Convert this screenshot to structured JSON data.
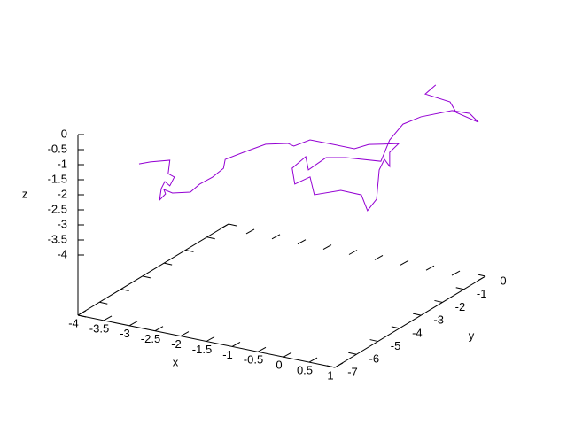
{
  "chart_data": {
    "type": "line3d",
    "xlabel": "x",
    "ylabel": "y",
    "zlabel": "z",
    "xlim": [
      -4,
      1
    ],
    "ylim": [
      -7,
      0
    ],
    "zlim": [
      -4,
      0
    ],
    "xticks": [
      -4,
      -3.5,
      -3,
      -2.5,
      -2,
      -1.5,
      -1,
      -0.5,
      0,
      0.5,
      1
    ],
    "yticks": [
      -7,
      -6,
      -5,
      -4,
      -3,
      -2,
      -1,
      0
    ],
    "zticks": [
      0,
      -0.5,
      -1,
      -1.5,
      -2,
      -2.5,
      -3,
      -3.5,
      -4
    ],
    "series": [
      {
        "color": "#9400d3",
        "x": [
          -3.02,
          -2.89,
          -2.66,
          -2.68,
          -2.61,
          -2.66,
          -2.72,
          -2.76,
          -2.78,
          -2.71,
          -2.73,
          -2.63,
          -2.42,
          -2.31,
          -2.16,
          -2.03,
          -2.01,
          -1.8,
          -1.54,
          -1.28,
          -1.21,
          -1.02,
          -0.76,
          -0.5,
          -0.33,
          -0.17,
          0.02,
          -0.09,
          -0.09,
          -0.15,
          -0.21,
          -0.24,
          -0.35,
          -0.42,
          -0.66,
          -0.97,
          -1.02,
          -1.2,
          -1.23,
          -1.07,
          -1.04,
          -0.83,
          -0.6,
          -0.19,
          -0.09,
          0.07,
          0.28,
          0.64,
          0.85,
          0.95,
          0.69,
          0.62,
          0.33,
          0.45
        ],
        "y": [
          -6.5,
          -6.29,
          -5.93,
          -5.96,
          -5.84,
          -5.93,
          -6.02,
          -6.09,
          -6.12,
          -6.01,
          -6.04,
          -5.88,
          -5.55,
          -5.38,
          -5.14,
          -4.94,
          -4.91,
          -4.56,
          -4.15,
          -3.74,
          -3.63,
          -3.33,
          -2.92,
          -2.51,
          -2.25,
          -1.98,
          -1.69,
          -1.85,
          -1.85,
          -1.95,
          -2.05,
          -2.1,
          -2.26,
          -2.38,
          -2.76,
          -3.25,
          -3.33,
          -3.61,
          -3.66,
          -3.41,
          -3.36,
          -3.04,
          -2.67,
          -2.02,
          -1.85,
          -1.61,
          -1.28,
          -0.7,
          -0.38,
          -0.21,
          -0.62,
          -0.74,
          -1.2,
          -1.0
        ],
        "z": [
          -0.85,
          -0.83,
          -0.85,
          -1.29,
          -1.43,
          -1.7,
          -1.54,
          -1.76,
          -2.13,
          -1.95,
          -1.8,
          -1.95,
          -1.99,
          -1.76,
          -1.58,
          -1.33,
          -1.04,
          -0.88,
          -0.7,
          -0.76,
          -0.87,
          -0.73,
          -0.96,
          -1.2,
          -1.11,
          -1.16,
          -1.2,
          -1.46,
          -1.93,
          -1.67,
          -2.0,
          -2.96,
          -3.31,
          -2.76,
          -2.53,
          -2.57,
          -1.96,
          -2.14,
          -1.6,
          -1.27,
          -1.72,
          -1.38,
          -1.46,
          -1.72,
          -1.05,
          -0.57,
          -0.4,
          -0.32,
          -0.48,
          -0.81,
          -0.4,
          -0.02,
          0.34,
          0.6
        ]
      }
    ]
  }
}
